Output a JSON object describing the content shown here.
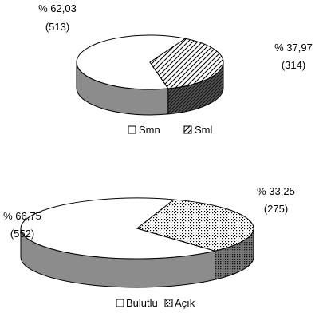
{
  "chart_data": [
    {
      "type": "pie",
      "categories": [
        "Smn",
        "Sml"
      ],
      "values": [
        513,
        314
      ],
      "percent_labels": [
        "% 62,03",
        "% 37,97"
      ],
      "count_labels": [
        "(513)",
        "(314)"
      ],
      "legend": [
        "Smn",
        "Sml"
      ],
      "legend_position": "bottom",
      "fills": [
        "plain",
        "diagonal-hatch"
      ],
      "colors": {
        "top": "#ffffff",
        "side": "#8c8c8c",
        "edge": "#000000"
      },
      "style": "3d"
    },
    {
      "type": "pie",
      "categories": [
        "Bulutlu",
        "Açık"
      ],
      "values": [
        552,
        275
      ],
      "percent_labels": [
        "% 66,75",
        "% 33,25"
      ],
      "count_labels": [
        "(552)",
        "(275)"
      ],
      "legend": [
        "Bulutlu",
        "Açık"
      ],
      "legend_position": "bottom",
      "fills": [
        "plain",
        "dotted"
      ],
      "colors": {
        "top": "#ffffff",
        "side": "#8c8c8c",
        "edge": "#000000"
      },
      "style": "3d"
    }
  ]
}
